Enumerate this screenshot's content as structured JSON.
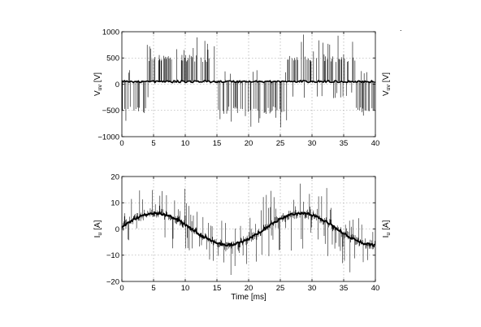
{
  "chart_data": [
    {
      "type": "line",
      "xlabel": "",
      "ylabel_left": "V",
      "ylabel_left_sub": "uv",
      "ylabel_left_unit": " [V]",
      "ylabel_right": "V",
      "ylabel_right_sub": "uv",
      "ylabel_right_unit": " [V]",
      "xlim": [
        0,
        40
      ],
      "ylim": [
        -1000,
        1000
      ],
      "xticks": [
        0,
        5,
        10,
        15,
        20,
        25,
        30,
        35,
        40
      ],
      "yticks": [
        -1000,
        -500,
        0,
        500,
        1000
      ],
      "grid": true,
      "series": [
        {
          "segments": [
            {
              "x": [
                0,
                4
              ],
              "level": -500
            },
            {
              "x": [
                4,
                15
              ],
              "level": 500
            },
            {
              "x": [
                15,
                26
              ],
              "level": -500
            },
            {
              "x": [
                26,
                37
              ],
              "level": 500
            },
            {
              "x": [
                37,
                40
              ],
              "level": -500
            }
          ],
          "baseline": 50,
          "pulse_amplitude": 600,
          "spike_peak": 950,
          "spike_trough": -850
        }
      ]
    },
    {
      "type": "line",
      "xlabel": "Time [ms]",
      "ylabel_left": "I",
      "ylabel_left_sub": "u",
      "ylabel_left_unit": " [A]",
      "ylabel_right": "I",
      "ylabel_right_sub": "u",
      "ylabel_right_unit": " [A]",
      "xlim": [
        0,
        40
      ],
      "ylim": [
        -20,
        20
      ],
      "xticks": [
        0,
        5,
        10,
        15,
        20,
        25,
        30,
        35,
        40
      ],
      "yticks": [
        -20,
        -10,
        0,
        10,
        20
      ],
      "grid": true,
      "series": [
        {
          "amplitude": 6,
          "period_ms": 23,
          "phase_ms": -0.5,
          "noise_peak": 18,
          "noise_trough": -17.5
        }
      ]
    }
  ],
  "corner_mark": "."
}
